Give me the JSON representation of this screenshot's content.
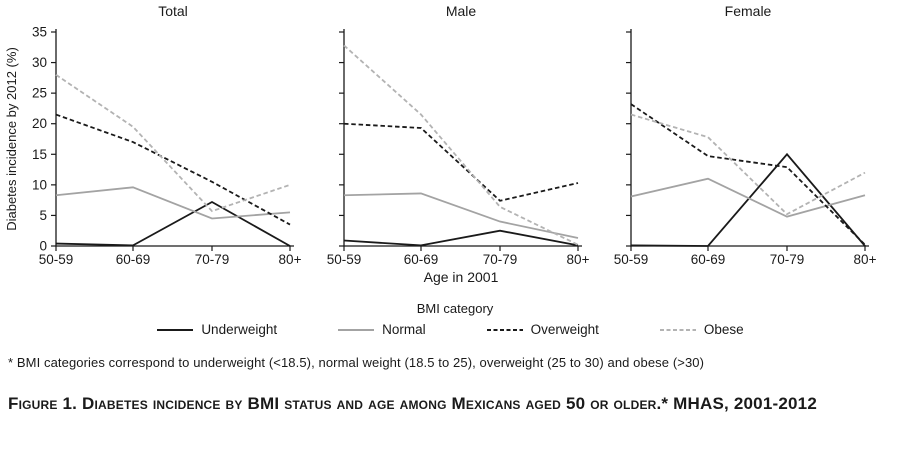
{
  "chart_data": [
    {
      "type": "line",
      "title": "Total",
      "categories": [
        "50-59",
        "60-69",
        "70-79",
        "80+"
      ],
      "xlabel": "Age in 2001",
      "ylabel": "Diabetes incidence by 2012 (%)",
      "ylim": [
        0,
        35
      ],
      "ytick_step": 5,
      "show_y_tick_labels": true,
      "grid": false,
      "series": [
        {
          "name": "Underweight",
          "values": [
            0.4,
            0.1,
            7.2,
            0
          ]
        },
        {
          "name": "Normal",
          "values": [
            8.3,
            9.6,
            4.5,
            5.5
          ]
        },
        {
          "name": "Overweight",
          "values": [
            21.5,
            17.0,
            10.5,
            3.5
          ]
        },
        {
          "name": "Obese",
          "values": [
            28.0,
            19.5,
            5.7,
            10.0
          ]
        }
      ]
    },
    {
      "type": "line",
      "title": "Male",
      "categories": [
        "50-59",
        "60-69",
        "70-79",
        "80+"
      ],
      "xlabel": "Age in 2001",
      "ylabel": "Diabetes incidence by 2012 (%)",
      "ylim": [
        0,
        35
      ],
      "ytick_step": 5,
      "show_y_tick_labels": false,
      "grid": false,
      "series": [
        {
          "name": "Underweight",
          "values": [
            0.9,
            0.1,
            2.5,
            0.1
          ]
        },
        {
          "name": "Normal",
          "values": [
            8.3,
            8.6,
            4.0,
            1.3
          ]
        },
        {
          "name": "Overweight",
          "values": [
            20.0,
            19.3,
            7.4,
            10.3
          ]
        },
        {
          "name": "Obese",
          "values": [
            32.8,
            21.5,
            6.4,
            0.2
          ]
        }
      ]
    },
    {
      "type": "line",
      "title": "Female",
      "categories": [
        "50-59",
        "60-69",
        "70-79",
        "80+"
      ],
      "xlabel": "Age in 2001",
      "ylabel": "Diabetes incidence by 2012 (%)",
      "ylim": [
        0,
        35
      ],
      "ytick_step": 5,
      "show_y_tick_labels": false,
      "grid": false,
      "series": [
        {
          "name": "Underweight",
          "values": [
            0.1,
            0,
            15.0,
            0
          ]
        },
        {
          "name": "Normal",
          "values": [
            8.1,
            11.0,
            4.8,
            8.3
          ]
        },
        {
          "name": "Overweight",
          "values": [
            23.2,
            14.7,
            12.9,
            0.2
          ]
        },
        {
          "name": "Obese",
          "values": [
            21.5,
            17.8,
            5.2,
            12.0
          ]
        }
      ]
    }
  ],
  "legend": {
    "title": "BMI category",
    "position": "bottom",
    "items": [
      {
        "label": "Underweight",
        "color": "#1a1a1a",
        "style": "solid"
      },
      {
        "label": "Normal",
        "color": "#a3a3a3",
        "style": "solid"
      },
      {
        "label": "Overweight",
        "color": "#1a1a1a",
        "style": "dashed"
      },
      {
        "label": "Obese",
        "color": "#b3b3b3",
        "style": "dashed"
      }
    ]
  },
  "footnote": "* BMI categories correspond to underweight (<18.5), normal weight (18.5 to 25), overweight (25 to 30) and obese (>30)",
  "caption": "Figure 1. Diabetes incidence by BMI status and age among Mexicans aged 50 or older.* MHAS, 2001-2012",
  "colors": {
    "ink": "#1a1a1a",
    "gray_line": "#a3a3a3",
    "light_gray_line": "#b3b3b3"
  }
}
